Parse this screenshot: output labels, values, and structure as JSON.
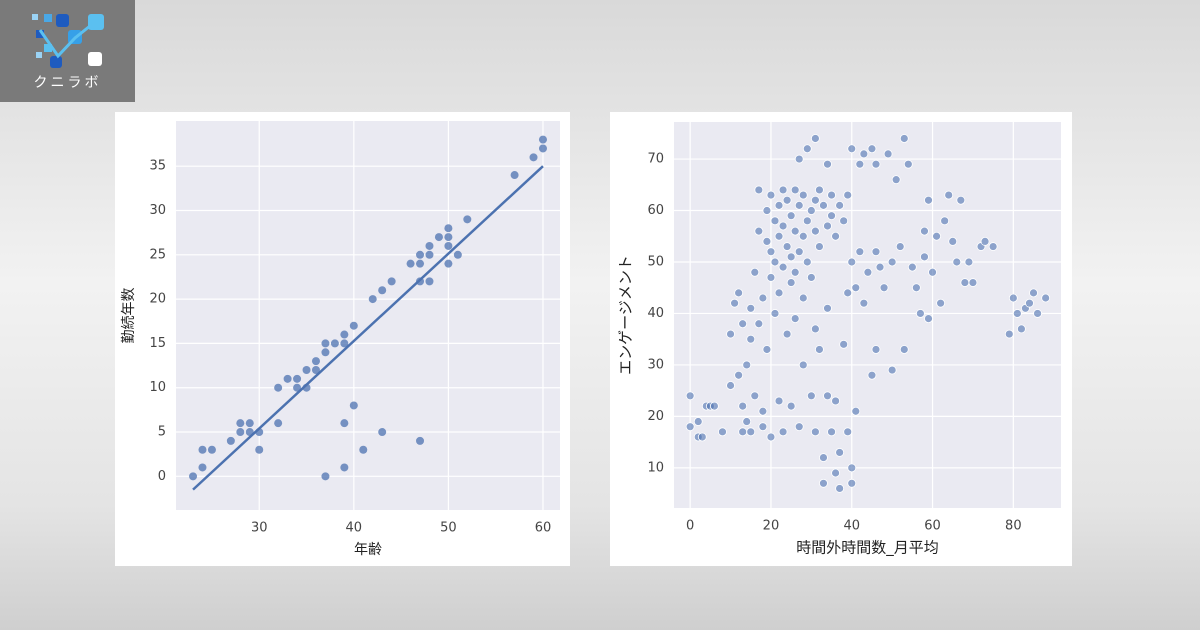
{
  "logo": {
    "text": "クニラボ"
  },
  "chart_data": [
    {
      "type": "scatter",
      "x_label": "年齢",
      "y_label": "勤続年数",
      "color": "#4c72b0",
      "grid": true,
      "xlim": [
        21.2,
        61.8
      ],
      "ylim": [
        -3.8,
        40.1
      ],
      "xticks": [
        30,
        40,
        50,
        60
      ],
      "yticks": [
        0,
        5,
        10,
        15,
        20,
        25,
        30,
        35
      ],
      "x": [
        23,
        24,
        24,
        25,
        27,
        28,
        28,
        29,
        29,
        30,
        30,
        32,
        32,
        33,
        34,
        34,
        35,
        35,
        36,
        36,
        37,
        37,
        38,
        39,
        39,
        40,
        42,
        43,
        44,
        46,
        47,
        47,
        47,
        48,
        48,
        48,
        49,
        50,
        50,
        50,
        50,
        51,
        52,
        57,
        59,
        60,
        60,
        37,
        39,
        39,
        40,
        41,
        43,
        47
      ],
      "values": [
        0,
        1,
        3,
        3,
        4,
        5,
        6,
        5,
        6,
        5,
        3,
        6,
        10,
        11,
        10,
        11,
        10,
        12,
        12,
        13,
        14,
        15,
        15,
        15,
        16,
        17,
        20,
        21,
        22,
        24,
        24,
        25,
        22,
        22,
        25,
        26,
        27,
        27,
        28,
        26,
        24,
        25,
        29,
        34,
        36,
        37,
        38,
        0,
        1,
        6,
        8,
        3,
        5,
        4
      ],
      "trend": {
        "x": [
          23,
          60
        ],
        "values": [
          -1.5,
          35
        ]
      }
    },
    {
      "type": "scatter",
      "x_label": "時間外時間数_月平均",
      "y_label": "エンゲージメント",
      "color": "#4c72b0",
      "grid": true,
      "xlim": [
        -4,
        91.8
      ],
      "ylim": [
        2.2,
        77.2
      ],
      "xticks": [
        0,
        20,
        40,
        60,
        80
      ],
      "yticks": [
        10,
        20,
        30,
        40,
        50,
        60,
        70
      ],
      "x": [
        0,
        0,
        2,
        2,
        3,
        4,
        5,
        6,
        8,
        10,
        10,
        11,
        12,
        12,
        13,
        13,
        13,
        14,
        14,
        15,
        15,
        15,
        16,
        16,
        17,
        17,
        17,
        18,
        18,
        18,
        19,
        19,
        19,
        20,
        20,
        20,
        20,
        21,
        21,
        21,
        22,
        22,
        22,
        22,
        23,
        23,
        23,
        23,
        24,
        24,
        24,
        25,
        25,
        25,
        25,
        26,
        26,
        26,
        26,
        27,
        27,
        27,
        27,
        28,
        28,
        28,
        28,
        29,
        29,
        29,
        30,
        30,
        30,
        31,
        31,
        31,
        31,
        31,
        32,
        32,
        32,
        33,
        33,
        33,
        34,
        34,
        34,
        34,
        35,
        35,
        35,
        36,
        36,
        36,
        37,
        37,
        37,
        38,
        38,
        39,
        39,
        39,
        40,
        40,
        40,
        40,
        41,
        41,
        42,
        42,
        43,
        43,
        44,
        45,
        45,
        46,
        46,
        46,
        47,
        48,
        49,
        50,
        50,
        51,
        52,
        53,
        53,
        54,
        55,
        56,
        57,
        58,
        58,
        59,
        59,
        60,
        61,
        62,
        63,
        64,
        65,
        66,
        67,
        68,
        69,
        70,
        72,
        73,
        75,
        79,
        80,
        81,
        82,
        83,
        84,
        85,
        86,
        88
      ],
      "values": [
        24,
        18,
        16,
        19,
        16,
        22,
        22,
        22,
        17,
        36,
        26,
        42,
        44,
        28,
        38,
        22,
        17,
        30,
        19,
        35,
        41,
        17,
        24,
        48,
        56,
        64,
        38,
        43,
        21,
        18,
        60,
        54,
        33,
        63,
        52,
        47,
        16,
        58,
        50,
        40,
        61,
        55,
        44,
        23,
        64,
        57,
        49,
        17,
        62,
        53,
        36,
        59,
        51,
        46,
        22,
        64,
        56,
        48,
        39,
        70,
        61,
        52,
        18,
        63,
        55,
        43,
        30,
        72,
        58,
        50,
        60,
        47,
        24,
        74,
        62,
        56,
        37,
        17,
        64,
        53,
        33,
        61,
        12,
        7,
        69,
        57,
        41,
        24,
        63,
        59,
        17,
        55,
        23,
        9,
        61,
        13,
        6,
        58,
        34,
        63,
        44,
        17,
        72,
        50,
        10,
        7,
        45,
        21,
        69,
        52,
        71,
        42,
        48,
        72,
        28,
        69,
        52,
        33,
        49,
        45,
        71,
        29,
        50,
        66,
        53,
        74,
        33,
        69,
        49,
        45,
        40,
        51,
        56,
        62,
        39,
        48,
        55,
        42,
        58,
        63,
        54,
        50,
        62,
        46,
        50,
        46,
        53,
        54,
        53,
        36,
        43,
        40,
        37,
        41,
        42,
        44,
        40,
        43
      ]
    }
  ]
}
